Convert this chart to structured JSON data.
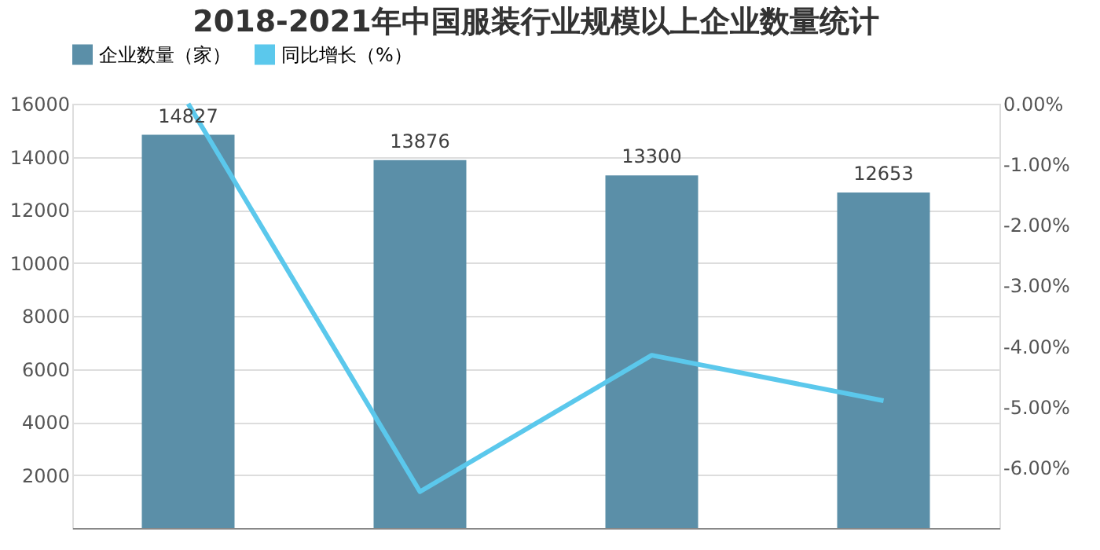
{
  "chart_data": {
    "type": "bar",
    "title": "2018-2021年中国服装行业规模以上企业数量统计",
    "categories": [
      null,
      null,
      null,
      null
    ],
    "series": [
      {
        "name": "企业数量（家）",
        "color": "#5b8fa8",
        "values": [
          14827,
          13876,
          13300,
          12653
        ],
        "data_labels": true
      },
      {
        "name": "同比增长（%）",
        "type": "line",
        "axis": "y2",
        "color": "#5bc8ec",
        "values": [
          0.0,
          -6.4,
          -4.15,
          -4.9
        ]
      }
    ],
    "ylim": [
      0,
      16000
    ],
    "yticks": [
      2000,
      4000,
      6000,
      8000,
      10000,
      12000,
      14000,
      16000
    ],
    "y2lim": [
      -7,
      0
    ],
    "y2ticks": [
      {
        "value": 0,
        "label": "0.00%"
      },
      {
        "value": -1,
        "label": "-1.00%"
      },
      {
        "value": -2,
        "label": "-2.00%"
      },
      {
        "value": -3,
        "label": "-3.00%"
      },
      {
        "value": -4,
        "label": "-4.00%"
      },
      {
        "value": -5,
        "label": "-5.00%"
      },
      {
        "value": -6,
        "label": "-6.00%"
      }
    ],
    "grid": "y",
    "legend": "top",
    "tick_labels": "y",
    "marker": "none",
    "line_style": "solid"
  }
}
